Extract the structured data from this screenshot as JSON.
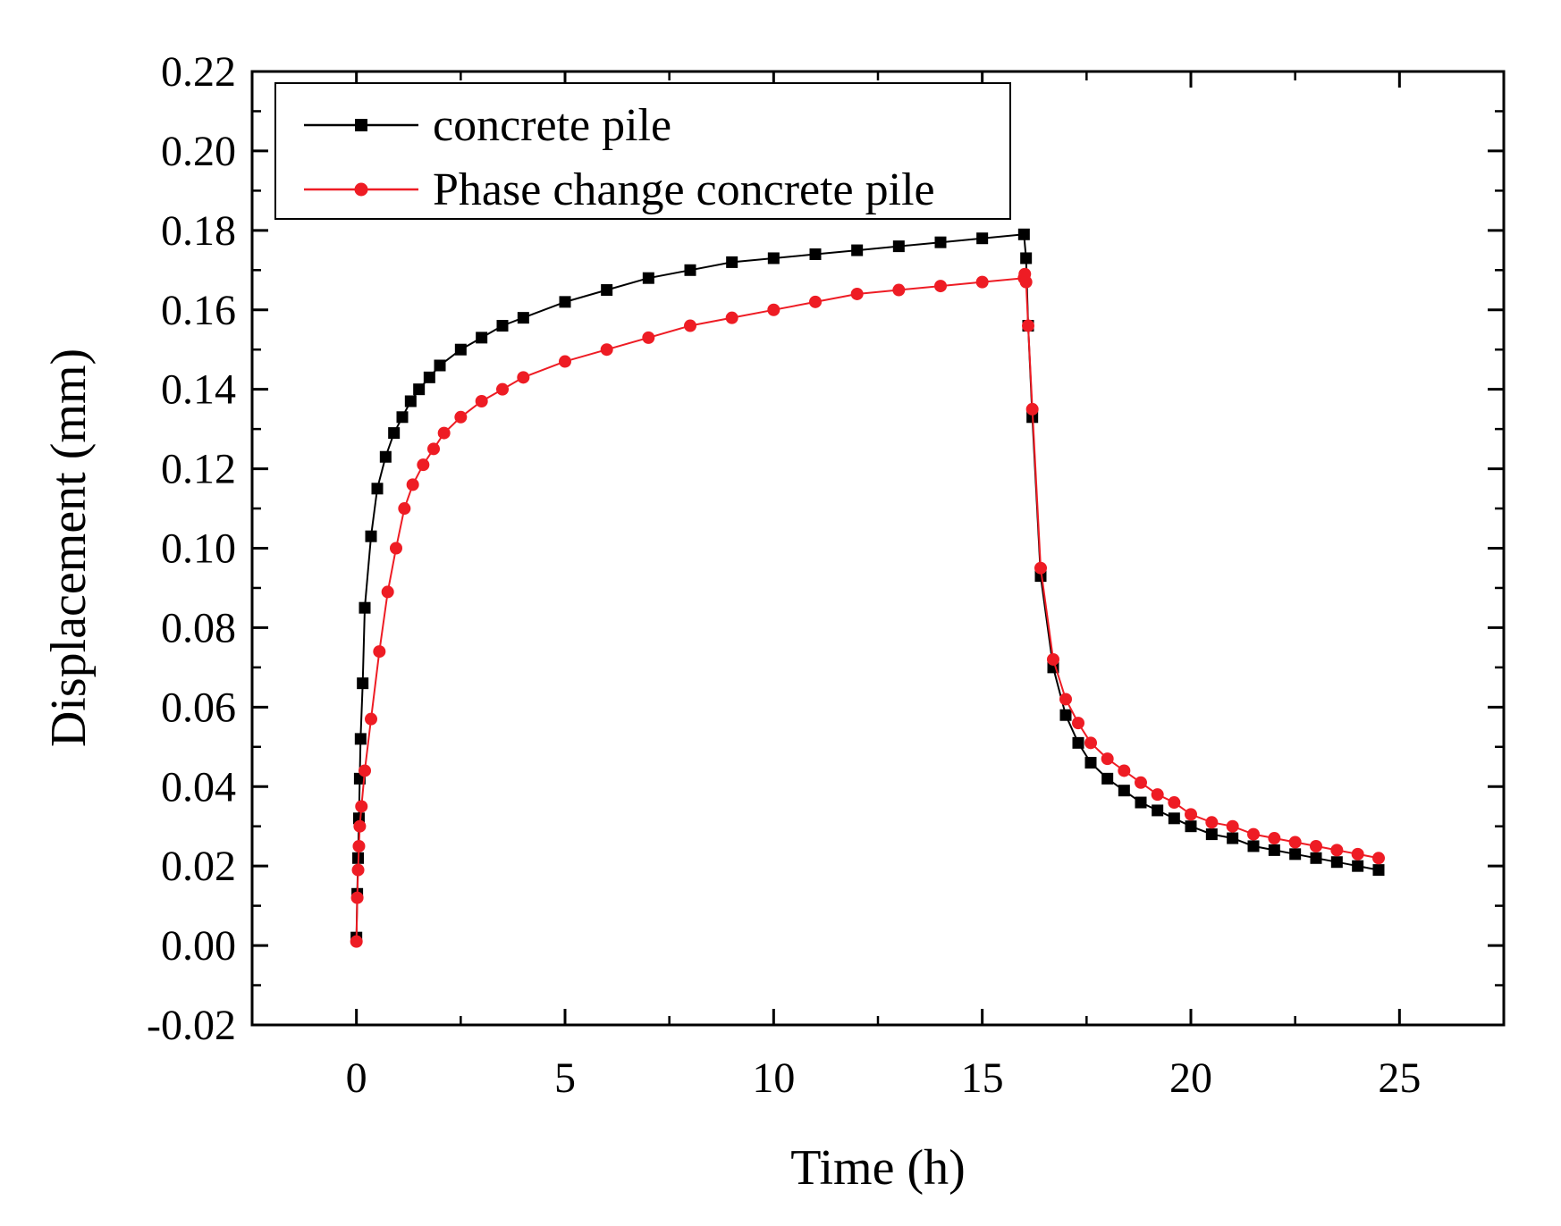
{
  "chart_data": {
    "type": "line",
    "title": "",
    "xlabel": "Time (h)",
    "ylabel": "Displacement (mm)",
    "xlim": [
      -2.5,
      27.5
    ],
    "ylim": [
      -0.02,
      0.22
    ],
    "xticks": [
      0,
      5,
      10,
      15,
      20,
      25
    ],
    "xtick_labels": [
      "0",
      "5",
      "10",
      "15",
      "20",
      "25"
    ],
    "yticks": [
      -0.02,
      0.0,
      0.02,
      0.04,
      0.06,
      0.08,
      0.1,
      0.12,
      0.14,
      0.16,
      0.18,
      0.2,
      0.22
    ],
    "ytick_labels": [
      "-0.02",
      "0.00",
      "0.02",
      "0.04",
      "0.06",
      "0.08",
      "0.10",
      "0.12",
      "0.14",
      "0.16",
      "0.18",
      "0.20",
      "0.22"
    ],
    "grid": false,
    "legend_position": "top-left",
    "series": [
      {
        "name": "concrete pile",
        "color": "#000000",
        "marker": "square",
        "x": [
          0,
          0.02,
          0.04,
          0.06,
          0.08,
          0.1,
          0.15,
          0.2,
          0.35,
          0.5,
          0.7,
          0.9,
          1.1,
          1.3,
          1.5,
          1.75,
          2,
          2.5,
          3,
          3.5,
          4,
          5,
          6,
          7,
          8,
          9,
          10,
          11,
          12,
          13,
          14,
          15,
          16,
          16.05,
          16.1,
          16.2,
          16.4,
          16.7,
          17,
          17.3,
          17.6,
          18,
          18.4,
          18.8,
          19.2,
          19.6,
          20,
          20.5,
          21,
          21.5,
          22,
          22.5,
          23,
          23.5,
          24,
          24.5
        ],
        "y": [
          0.002,
          0.013,
          0.022,
          0.032,
          0.042,
          0.052,
          0.066,
          0.085,
          0.103,
          0.115,
          0.123,
          0.129,
          0.133,
          0.137,
          0.14,
          0.143,
          0.146,
          0.15,
          0.153,
          0.156,
          0.158,
          0.162,
          0.165,
          0.168,
          0.17,
          0.172,
          0.173,
          0.174,
          0.175,
          0.176,
          0.177,
          0.178,
          0.179,
          0.173,
          0.156,
          0.133,
          0.093,
          0.07,
          0.058,
          0.051,
          0.046,
          0.042,
          0.039,
          0.036,
          0.034,
          0.032,
          0.03,
          0.028,
          0.027,
          0.025,
          0.024,
          0.023,
          0.022,
          0.021,
          0.02,
          0.019
        ]
      },
      {
        "name": "Phase change concrete pile",
        "color": "#ee1c24",
        "marker": "circle",
        "x": [
          0,
          0.02,
          0.04,
          0.06,
          0.08,
          0.12,
          0.2,
          0.35,
          0.55,
          0.75,
          0.95,
          1.15,
          1.35,
          1.6,
          1.85,
          2.1,
          2.5,
          3,
          3.5,
          4,
          5,
          6,
          7,
          8,
          9,
          10,
          11,
          12,
          13,
          14,
          15,
          16,
          16.02,
          16.05,
          16.1,
          16.2,
          16.4,
          16.7,
          17,
          17.3,
          17.6,
          18,
          18.4,
          18.8,
          19.2,
          19.6,
          20,
          20.5,
          21,
          21.5,
          22,
          22.5,
          23,
          23.5,
          24,
          24.5
        ],
        "y": [
          0.001,
          0.012,
          0.019,
          0.025,
          0.03,
          0.035,
          0.044,
          0.057,
          0.074,
          0.089,
          0.1,
          0.11,
          0.116,
          0.121,
          0.125,
          0.129,
          0.133,
          0.137,
          0.14,
          0.143,
          0.147,
          0.15,
          0.153,
          0.156,
          0.158,
          0.16,
          0.162,
          0.164,
          0.165,
          0.166,
          0.167,
          0.168,
          0.169,
          0.167,
          0.156,
          0.135,
          0.095,
          0.072,
          0.062,
          0.056,
          0.051,
          0.047,
          0.044,
          0.041,
          0.038,
          0.036,
          0.033,
          0.031,
          0.03,
          0.028,
          0.027,
          0.026,
          0.025,
          0.024,
          0.023,
          0.022
        ]
      }
    ]
  }
}
